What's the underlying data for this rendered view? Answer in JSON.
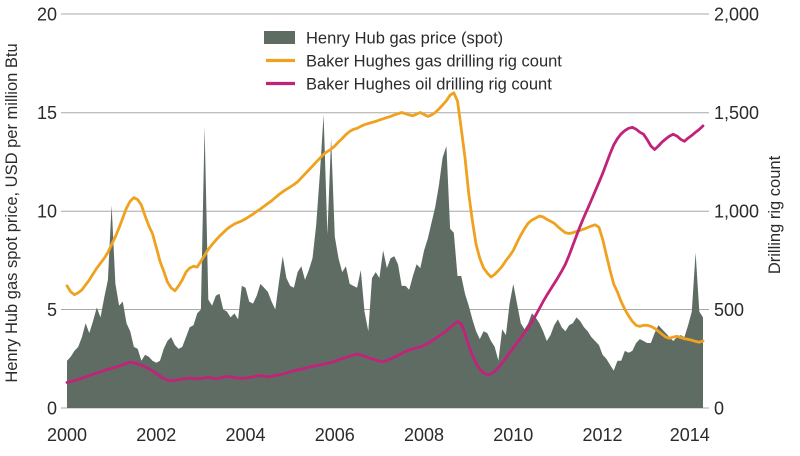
{
  "left_axis": {
    "title": "Henry Hub gas spot price, USD per million Btu",
    "labels": [
      "0",
      "5",
      "10",
      "15",
      "20"
    ],
    "ticks": [
      0,
      5,
      10,
      15,
      20
    ]
  },
  "right_axis": {
    "title": "Drilling rig count",
    "labels": [
      "0",
      "500",
      "1,000",
      "1,500",
      "2,000"
    ],
    "ticks": [
      0,
      500,
      1000,
      1500,
      2000
    ]
  },
  "x_axis": {
    "labels": [
      "2000",
      "2002",
      "2004",
      "2006",
      "2008",
      "2010",
      "2012",
      "2014"
    ]
  },
  "legend": {
    "items": [
      {
        "label": "Henry Hub gas price (spot)",
        "type": "area",
        "color": "#5e6c64"
      },
      {
        "label": "Baker Hughes gas drilling rig count",
        "type": "line",
        "color": "#efa21f"
      },
      {
        "label": "Baker Hughes oil drilling rig count",
        "type": "line",
        "color": "#c02379"
      }
    ]
  },
  "chart_data": {
    "type": "area+line combo, monthly time series",
    "x_start_year": 2000,
    "x_step_months": 1,
    "x_end": "2014-04",
    "xlim": [
      2000,
      2014.37
    ],
    "left_ylim": [
      0,
      20
    ],
    "right_ylim": [
      0,
      2000
    ],
    "grid": "horizontal only",
    "legend_position": "top center",
    "series": [
      {
        "name": "Henry Hub gas price (spot)",
        "type": "area",
        "axis": "left",
        "units": "USD per million Btu",
        "color": "#5e6c64",
        "values": [
          2.4,
          2.6,
          2.9,
          3.1,
          3.6,
          4.3,
          3.8,
          4.4,
          5.1,
          4.6,
          5.6,
          6.5,
          10.3,
          6.3,
          5.2,
          5.4,
          4.3,
          3.9,
          3.1,
          3.0,
          2.4,
          2.7,
          2.6,
          2.4,
          2.3,
          2.4,
          3.0,
          3.4,
          3.6,
          3.2,
          3.0,
          3.1,
          3.6,
          4.1,
          4.2,
          4.8,
          5.0,
          14.3,
          5.5,
          5.2,
          5.7,
          5.8,
          5.0,
          4.9,
          4.6,
          4.8,
          4.5,
          6.2,
          6.1,
          5.4,
          5.3,
          5.7,
          6.3,
          6.1,
          5.9,
          5.4,
          5.0,
          6.4,
          7.7,
          6.6,
          6.2,
          6.1,
          6.9,
          7.2,
          6.5,
          7.0,
          7.6,
          9.3,
          11.9,
          14.9,
          8.8,
          13.7,
          8.7,
          7.6,
          6.9,
          7.2,
          6.3,
          6.2,
          6.1,
          7.0,
          4.9,
          3.9,
          6.6,
          6.9,
          6.6,
          8.0,
          7.1,
          7.6,
          7.7,
          7.3,
          6.2,
          6.2,
          6.0,
          6.7,
          7.3,
          7.1,
          8.0,
          8.6,
          9.4,
          10.2,
          11.3,
          12.7,
          13.3,
          9.1,
          8.9,
          6.7,
          6.7,
          5.8,
          5.2,
          4.5,
          3.9,
          3.5,
          3.9,
          3.8,
          3.4,
          3.1,
          2.4,
          4.0,
          3.7,
          5.3,
          6.3,
          5.3,
          4.3,
          4.0,
          4.3,
          4.8,
          4.6,
          4.3,
          3.9,
          3.4,
          3.7,
          4.2,
          4.5,
          4.1,
          3.9,
          4.2,
          4.3,
          4.6,
          4.4,
          4.1,
          3.9,
          3.6,
          3.4,
          3.2,
          2.7,
          2.5,
          2.2,
          1.9,
          2.4,
          2.4,
          2.9,
          2.8,
          2.9,
          3.3,
          3.5,
          3.4,
          3.3,
          3.3,
          3.8,
          4.2,
          4.0,
          3.8,
          3.6,
          3.4,
          3.6,
          3.7,
          3.6,
          4.2,
          4.9,
          7.9,
          4.9,
          4.6
        ]
      },
      {
        "name": "Baker Hughes gas drilling rig count",
        "type": "line",
        "axis": "right",
        "units": "rigs",
        "color": "#efa21f",
        "values": [
          620,
          590,
          575,
          585,
          600,
          625,
          650,
          680,
          710,
          735,
          760,
          790,
          830,
          870,
          915,
          965,
          1015,
          1050,
          1068,
          1058,
          1030,
          975,
          925,
          885,
          815,
          745,
          695,
          640,
          610,
          595,
          620,
          650,
          690,
          710,
          720,
          715,
          745,
          775,
          805,
          830,
          852,
          872,
          890,
          908,
          922,
          934,
          942,
          950,
          960,
          972,
          984,
          998,
          1010,
          1024,
          1038,
          1052,
          1068,
          1084,
          1098,
          1110,
          1122,
          1134,
          1148,
          1168,
          1188,
          1208,
          1228,
          1248,
          1268,
          1288,
          1302,
          1314,
          1330,
          1350,
          1368,
          1388,
          1404,
          1414,
          1420,
          1430,
          1438,
          1444,
          1450,
          1455,
          1462,
          1468,
          1474,
          1480,
          1488,
          1494,
          1500,
          1494,
          1488,
          1484,
          1492,
          1500,
          1490,
          1480,
          1488,
          1500,
          1518,
          1538,
          1560,
          1588,
          1600,
          1558,
          1420,
          1270,
          1090,
          950,
          830,
          760,
          710,
          685,
          665,
          678,
          698,
          720,
          748,
          772,
          800,
          840,
          878,
          910,
          938,
          954,
          964,
          974,
          970,
          958,
          948,
          938,
          920,
          904,
          890,
          886,
          890,
          896,
          902,
          908,
          916,
          924,
          930,
          918,
          858,
          778,
          700,
          630,
          588,
          540,
          500,
          468,
          440,
          420,
          414,
          420,
          420,
          414,
          404,
          390,
          374,
          360,
          354,
          360,
          364,
          358,
          352,
          348,
          344,
          338,
          334,
          340
        ]
      },
      {
        "name": "Baker Hughes oil drilling rig count",
        "type": "line",
        "axis": "right",
        "units": "rigs",
        "color": "#c02379",
        "values": [
          130,
          134,
          139,
          144,
          151,
          157,
          164,
          171,
          177,
          184,
          191,
          196,
          201,
          207,
          213,
          219,
          227,
          232,
          229,
          224,
          217,
          209,
          199,
          189,
          175,
          162,
          150,
          142,
          138,
          140,
          143,
          147,
          150,
          152,
          150,
          148,
          150,
          153,
          156,
          152,
          148,
          152,
          156,
          160,
          158,
          155,
          152,
          150,
          152,
          155,
          158,
          162,
          165,
          162,
          158,
          162,
          165,
          168,
          172,
          178,
          184,
          189,
          193,
          197,
          201,
          207,
          211,
          215,
          219,
          223,
          227,
          231,
          237,
          244,
          251,
          257,
          263,
          269,
          273,
          269,
          263,
          256,
          249,
          243,
          238,
          236,
          241,
          248,
          257,
          267,
          277,
          287,
          295,
          300,
          305,
          310,
          318,
          328,
          340,
          352,
          365,
          378,
          392,
          408,
          424,
          438,
          428,
          378,
          318,
          268,
          228,
          198,
          178,
          168,
          173,
          186,
          204,
          228,
          254,
          280,
          305,
          330,
          356,
          382,
          408,
          436,
          470,
          505,
          540,
          572,
          602,
          632,
          662,
          695,
          730,
          775,
          825,
          875,
          925,
          970,
          1012,
          1056,
          1100,
          1145,
          1190,
          1240,
          1290,
          1335,
          1368,
          1392,
          1408,
          1420,
          1425,
          1415,
          1400,
          1390,
          1362,
          1330,
          1312,
          1330,
          1350,
          1366,
          1380,
          1390,
          1380,
          1364,
          1354,
          1370,
          1384,
          1400,
          1414,
          1432
        ]
      }
    ]
  }
}
